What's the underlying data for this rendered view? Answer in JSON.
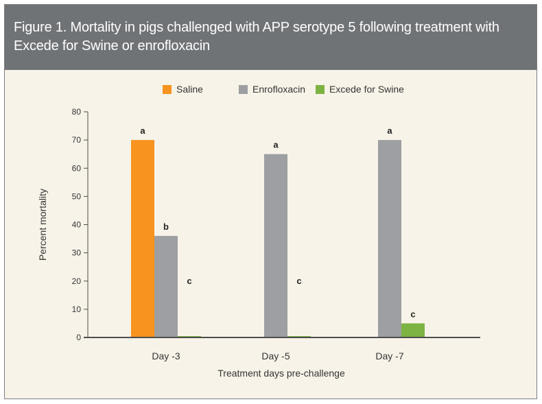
{
  "figure": {
    "title": "Figure 1. Mortality in pigs challenged with APP serotype 5 following treatment with Excede for Swine or enrofloxacin"
  },
  "chart_data": {
    "type": "bar",
    "title": "Figure 1. Mortality in pigs challenged with APP serotype 5 following treatment with Excede for Swine or enrofloxacin",
    "xlabel": "Treatment days pre-challenge",
    "ylabel": "Percent mortality",
    "ylim": [
      0,
      80
    ],
    "yticks": [
      0,
      10,
      20,
      30,
      40,
      50,
      60,
      70,
      80
    ],
    "grid": false,
    "legend_position": "top",
    "categories": [
      "Day -3",
      "Day -5",
      "Day -7"
    ],
    "series": [
      {
        "name": "Saline",
        "color": "#f7931e",
        "values": [
          70,
          null,
          null
        ],
        "labels": [
          "a",
          null,
          null
        ]
      },
      {
        "name": "Enrofloxacin",
        "color": "#9d9fa2",
        "values": [
          36,
          65,
          70
        ],
        "labels": [
          "b",
          "a",
          "a"
        ]
      },
      {
        "name": "Excede for Swine",
        "color": "#7cb342",
        "values": [
          0.3,
          0.3,
          5
        ],
        "labels": [
          "c",
          "c",
          "c"
        ]
      }
    ]
  }
}
